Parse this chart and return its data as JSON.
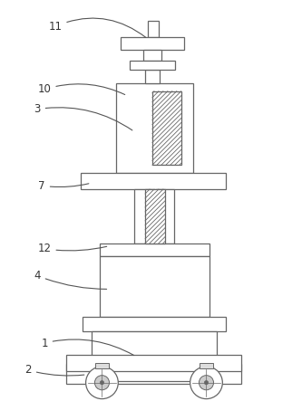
{
  "fig_width": 3.33,
  "fig_height": 4.43,
  "dpi": 100,
  "bg_color": "#ffffff",
  "lc": "#666666",
  "lw": 0.9
}
